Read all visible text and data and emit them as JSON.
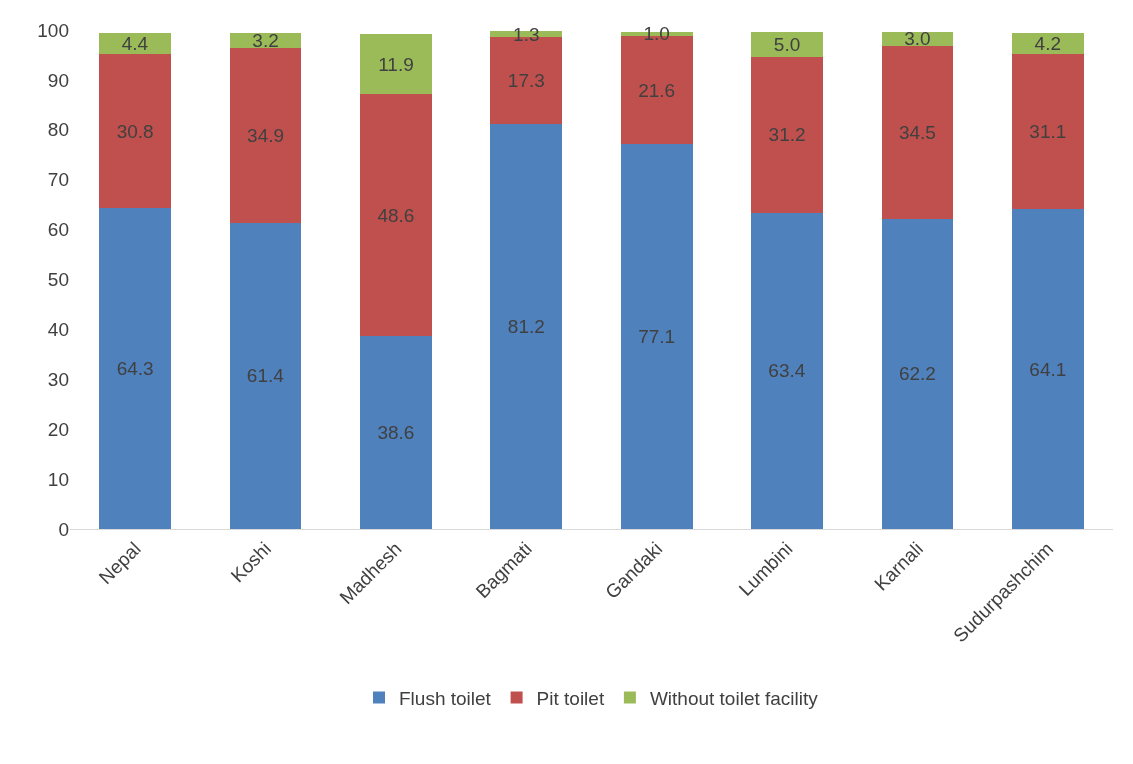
{
  "chart_data": {
    "type": "bar",
    "stacked": true,
    "categories": [
      "Nepal",
      "Koshi",
      "Madhesh",
      "Bagmati",
      "Gandaki",
      "Lumbini",
      "Karnali",
      "Sudurpashchim"
    ],
    "series": [
      {
        "name": "Flush toilet",
        "color": "#4f81bd",
        "values": [
          64.3,
          61.4,
          38.6,
          81.2,
          77.1,
          63.4,
          62.2,
          64.1
        ],
        "value_labels": [
          "64.3",
          "61.4",
          "38.6",
          "81.2",
          "77.1",
          "63.4",
          "62.2",
          "64.1"
        ]
      },
      {
        "name": "Pit toilet",
        "color": "#c0504d",
        "values": [
          30.8,
          34.9,
          48.6,
          17.3,
          21.6,
          31.2,
          34.5,
          31.1
        ],
        "value_labels": [
          "30.8",
          "34.9",
          "48.6",
          "17.3",
          "21.6",
          "31.2",
          "34.5",
          "31.1"
        ]
      },
      {
        "name": "Without toilet facility",
        "color": "#9bbb59",
        "values": [
          4.4,
          3.2,
          11.9,
          1.3,
          1,
          5,
          3,
          4.2
        ],
        "value_labels": [
          "4.4",
          "3.2",
          "11.9",
          "1.3",
          "1.0",
          "5.0",
          "3.0",
          "4.2"
        ]
      }
    ],
    "ylim": [
      0,
      100
    ],
    "yticks": [
      0,
      10,
      20,
      30,
      40,
      50,
      60,
      70,
      80,
      90,
      100
    ],
    "grid": false,
    "legend": "bottom"
  }
}
